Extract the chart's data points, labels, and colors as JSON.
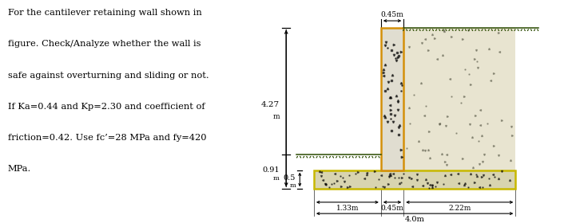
{
  "text_lines": [
    "For the cantilever retaining wall shown in",
    "figure. Check/Analyze whether the wall is",
    "safe against overturning and sliding or not.",
    "If Ka=0.44 and Kp=2.30 and coefficient of",
    "friction=0.42. Use fc’=28 MPa and fy=420",
    "MPa."
  ],
  "dim_427": "4.27",
  "dim_427_unit": "m",
  "dim_091": "0.91",
  "dim_091_unit": "m",
  "dim_05": "0.5",
  "dim_05_unit": "m",
  "dim_133": "1.33m",
  "dim_045w": "0.45m",
  "dim_222": "2.22m",
  "dim_40": "4.0m",
  "dim_top": "0.45m",
  "orange_edge": "#D4900A",
  "yellow_edge": "#C8B800",
  "concrete_light": "#E0DDD0",
  "footing_light": "#D8D4B0",
  "soil_bg": "#E8E4D0",
  "background": "#FFFFFF",
  "text_color": "#000000",
  "hatch_color": "#2A4A00",
  "fig_width": 7.21,
  "fig_height": 2.8,
  "dpi": 100
}
